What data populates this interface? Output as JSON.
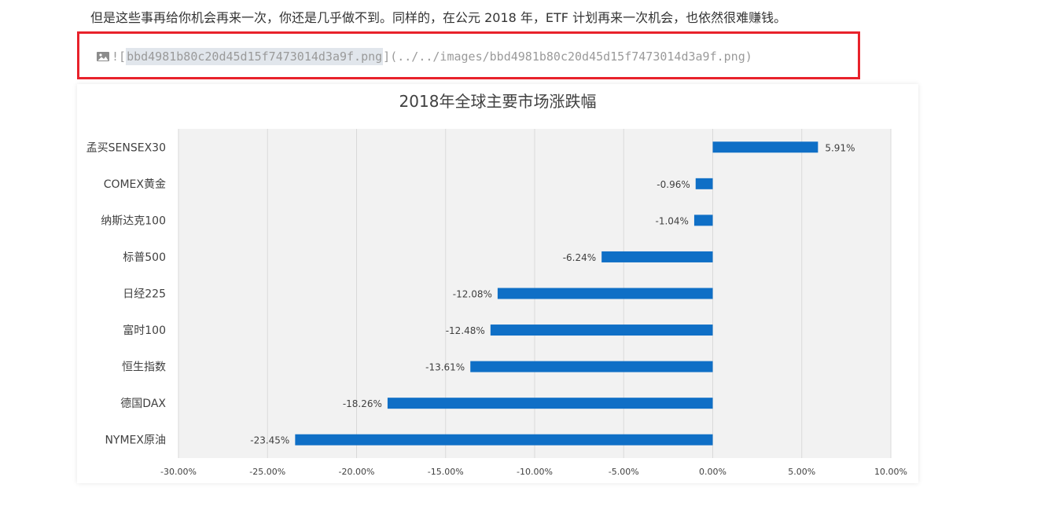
{
  "article": {
    "paragraph": "但是这些事再给你机会再来一次，你还是几乎做不到。同样的，在公元 2018 年，ETF 计划再来一次机会，也依然很难赚钱。",
    "image_markdown": {
      "prefix": "![",
      "alt_text": "bbd4981b80c20d45d15f7473014d3a9f.png",
      "suffix": "](../../images/bbd4981b80c20d45d15f7473014d3a9f.png)",
      "icon": "image-icon"
    }
  },
  "colors": {
    "highlight_border": "#e8222b",
    "bar": "#0f6fc6",
    "plot_bg": "#f2f2f2",
    "grid": "#d9d9d9",
    "text": "#404040",
    "title": "#404040"
  },
  "chart_data": {
    "type": "bar",
    "orientation": "horizontal",
    "title": "2018年全球主要市场涨跌幅",
    "categories": [
      "孟买SENSEX30",
      "COMEX黄金",
      "纳斯达克100",
      "标普500",
      "日经225",
      "富时100",
      "恒生指数",
      "德国DAX",
      "NYMEX原油"
    ],
    "values": [
      5.91,
      -0.96,
      -1.04,
      -6.24,
      -12.08,
      -12.48,
      -13.61,
      -18.26,
      -23.45
    ],
    "data_labels": [
      "5.91%",
      "-0.96%",
      "-1.04%",
      "-6.24%",
      "-12.08%",
      "-12.48%",
      "-13.61%",
      "-18.26%",
      "-23.45%"
    ],
    "xlim": [
      -30,
      10
    ],
    "x_ticks": [
      -30,
      -25,
      -20,
      -15,
      -10,
      -5,
      0,
      5,
      10
    ],
    "x_tick_labels": [
      "-30.00%",
      "-25.00%",
      "-20.00%",
      "-15.00%",
      "-10.00%",
      "-5.00%",
      "0.00%",
      "5.00%",
      "10.00%"
    ],
    "xlabel": "",
    "ylabel": "",
    "grid": true,
    "legend": "none"
  }
}
